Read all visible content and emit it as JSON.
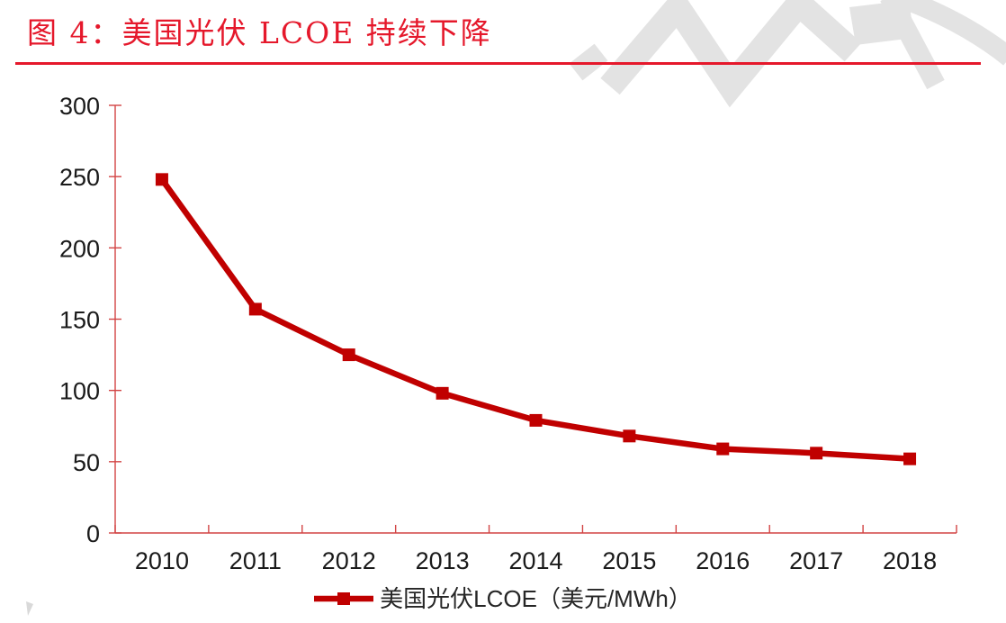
{
  "figure": {
    "title": "图 4：美国光伏 LCOE 持续下降"
  },
  "chart_data": {
    "type": "line",
    "title": "图 4：美国光伏 LCOE 持续下降",
    "categories": [
      "2010",
      "2011",
      "2012",
      "2013",
      "2014",
      "2015",
      "2016",
      "2017",
      "2018"
    ],
    "series": [
      {
        "name": "美国光伏LCOE（美元/MWh）",
        "values": [
          248,
          157,
          125,
          98,
          79,
          68,
          59,
          56,
          52
        ],
        "color": "#c00000",
        "marker": "square"
      }
    ],
    "xlabel": "",
    "ylabel": "",
    "ylim": [
      0,
      300
    ],
    "yticks": [
      0,
      50,
      100,
      150,
      200,
      250,
      300
    ],
    "grid": false,
    "legend_position": "bottom"
  },
  "legend": {
    "label": "美国光伏LCOE（美元/MWh）"
  },
  "colors": {
    "title_red": "#e5182b",
    "rule_red": "#e5182b",
    "series_red": "#c00000",
    "axis_red": "#d24444",
    "tick_text": "#1a1a1a",
    "legend_text": "#262626",
    "watermark_gray": "#e3e3e3",
    "corner_gray": "#d9d9d9"
  }
}
